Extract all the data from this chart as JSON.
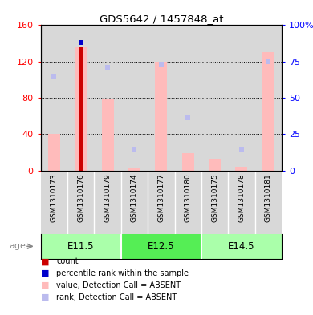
{
  "title": "GDS5642 / 1457848_at",
  "samples": [
    "GSM1310173",
    "GSM1310176",
    "GSM1310179",
    "GSM1310174",
    "GSM1310177",
    "GSM1310180",
    "GSM1310175",
    "GSM1310178",
    "GSM1310181"
  ],
  "count_values": [
    0,
    136,
    0,
    0,
    0,
    0,
    0,
    0,
    0
  ],
  "percentile_rank": [
    0,
    88,
    0,
    0,
    0,
    0,
    0,
    0,
    0
  ],
  "value_absent": [
    40,
    136,
    79,
    3,
    120,
    19,
    13,
    4,
    130
  ],
  "rank_absent": [
    65,
    88,
    71,
    14,
    73,
    36,
    0,
    14,
    75
  ],
  "ylim_left": [
    0,
    160
  ],
  "ylim_right": [
    0,
    100
  ],
  "yticks_left": [
    0,
    40,
    80,
    120,
    160
  ],
  "yticks_right": [
    0,
    25,
    50,
    75,
    100
  ],
  "ytick_labels_left": [
    "0",
    "40",
    "80",
    "120",
    "160"
  ],
  "ytick_labels_right": [
    "0",
    "25",
    "50",
    "75",
    "100%"
  ],
  "age_groups": [
    {
      "label": "E11.5",
      "start": 0,
      "end": 3
    },
    {
      "label": "E12.5",
      "start": 3,
      "end": 6
    },
    {
      "label": "E14.5",
      "start": 6,
      "end": 9
    }
  ],
  "color_count": "#cc0000",
  "color_percentile": "#0000cc",
  "color_value_absent": "#ffbbbb",
  "color_rank_absent": "#bbbbee",
  "color_age_light": "#aaffaa",
  "color_age_dark": "#55ee55",
  "bg_color": "#d8d8d8",
  "bar_width": 0.45,
  "count_bar_width": 0.18,
  "rank_square_size": 5,
  "legend_items": [
    {
      "color": "#cc0000",
      "label": "count"
    },
    {
      "color": "#0000cc",
      "label": "percentile rank within the sample"
    },
    {
      "color": "#ffbbbb",
      "label": "value, Detection Call = ABSENT"
    },
    {
      "color": "#bbbbee",
      "label": "rank, Detection Call = ABSENT"
    }
  ]
}
